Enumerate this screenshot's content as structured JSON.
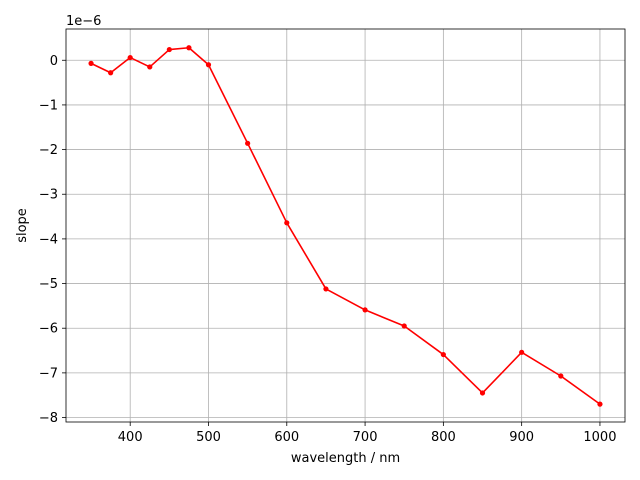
{
  "chart_data": {
    "type": "line",
    "title": "",
    "xlabel": "wavelength / nm",
    "ylabel": "slope",
    "y_offset_text": "1e−6",
    "xlim": [
      318,
      1032
    ],
    "ylim": [
      -8.1,
      0.7
    ],
    "xticks": [
      {
        "value": 400,
        "label": "400"
      },
      {
        "value": 500,
        "label": "500"
      },
      {
        "value": 600,
        "label": "600"
      },
      {
        "value": 700,
        "label": "700"
      },
      {
        "value": 800,
        "label": "800"
      },
      {
        "value": 900,
        "label": "900"
      },
      {
        "value": 1000,
        "label": "1000"
      }
    ],
    "yticks": [
      {
        "value": 0,
        "label": "0"
      },
      {
        "value": -1,
        "label": "−1"
      },
      {
        "value": -2,
        "label": "−2"
      },
      {
        "value": -3,
        "label": "−3"
      },
      {
        "value": -4,
        "label": "−4"
      },
      {
        "value": -5,
        "label": "−5"
      },
      {
        "value": -6,
        "label": "−6"
      },
      {
        "value": -7,
        "label": "−7"
      },
      {
        "value": -8,
        "label": "−8"
      }
    ],
    "grid": true,
    "legend": "none",
    "series": [
      {
        "color": "#ff0000",
        "marker": "circle",
        "x": [
          350,
          375,
          400,
          425,
          450,
          475,
          500,
          550,
          600,
          650,
          700,
          750,
          800,
          850,
          900,
          950,
          1000
        ],
        "y": [
          -0.07,
          -0.28,
          0.06,
          -0.15,
          0.24,
          0.28,
          -0.1,
          -1.86,
          -3.64,
          -5.12,
          -5.59,
          -5.95,
          -6.59,
          -7.45,
          -6.54,
          -7.07,
          -7.7
        ]
      }
    ]
  }
}
